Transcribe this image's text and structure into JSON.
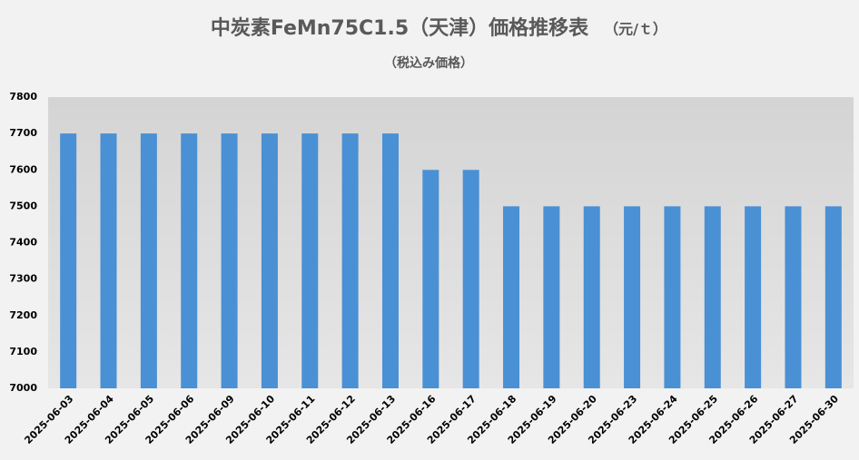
{
  "chart_data": {
    "type": "bar",
    "title": "中炭素FeMn75C1.5（天津）価格推移表",
    "title_unit": "（元/ｔ）",
    "subtitle": "（税込み価格）",
    "categories": [
      "2025-06-03",
      "2025-06-04",
      "2025-06-05",
      "2025-06-06",
      "2025-06-09",
      "2025-06-10",
      "2025-06-11",
      "2025-06-12",
      "2025-06-13",
      "2025-06-16",
      "2025-06-17",
      "2025-06-18",
      "2025-06-19",
      "2025-06-20",
      "2025-06-23",
      "2025-06-24",
      "2025-06-25",
      "2025-06-26",
      "2025-06-27",
      "2025-06-30"
    ],
    "values": [
      7700,
      7700,
      7700,
      7700,
      7700,
      7700,
      7700,
      7700,
      7700,
      7600,
      7600,
      7500,
      7500,
      7500,
      7500,
      7500,
      7500,
      7500,
      7500,
      7500
    ],
    "color": "#4a90d4",
    "ylim": [
      7000,
      7800
    ],
    "yticks": [
      7000,
      7100,
      7200,
      7300,
      7400,
      7500,
      7600,
      7700,
      7800
    ]
  }
}
